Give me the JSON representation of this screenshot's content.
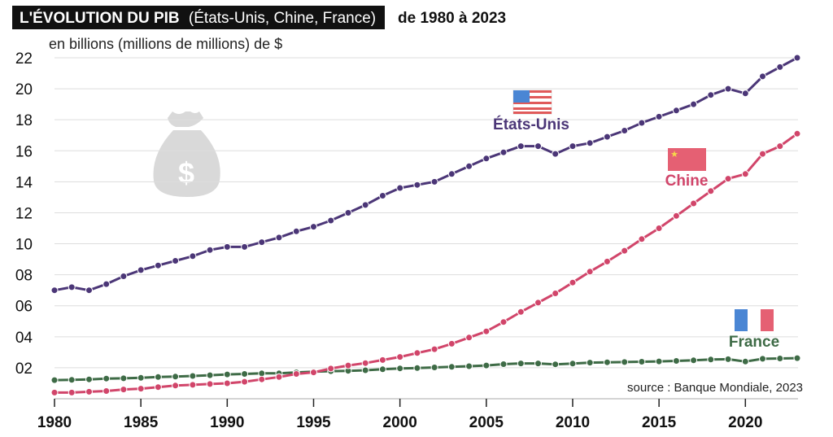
{
  "header": {
    "title_bold": "L'ÉVOLUTION DU PIB",
    "title_paren": "(États-Unis, Chine, France)",
    "title_range": "de 1980 à 2023"
  },
  "unit_label": "en billions (millions de millions) de $",
  "source": "source : Banque Mondiale, 2023",
  "colors": {
    "usa": "#4b3677",
    "china": "#d1456a",
    "france": "#3e6b46",
    "title_box": "#111111",
    "grid": "#dddddd",
    "money_bag": "#d9d9d9"
  },
  "icons": {
    "watermark": "money-bag-dollar-icon"
  },
  "chart_data": {
    "type": "line",
    "x": [
      1980,
      1981,
      1982,
      1983,
      1984,
      1985,
      1986,
      1987,
      1988,
      1989,
      1990,
      1991,
      1992,
      1993,
      1994,
      1995,
      1996,
      1997,
      1998,
      1999,
      2000,
      2001,
      2002,
      2003,
      2004,
      2005,
      2006,
      2007,
      2008,
      2009,
      2010,
      2011,
      2012,
      2013,
      2014,
      2015,
      2016,
      2017,
      2018,
      2019,
      2020,
      2021,
      2022,
      2023
    ],
    "x_ticks": [
      1980,
      1985,
      1990,
      1995,
      2000,
      2005,
      2010,
      2015,
      2020
    ],
    "x_tick_labels": [
      "1980",
      "1985",
      "1990",
      "1995",
      "2000",
      "2005",
      "2010",
      "2015",
      "2020"
    ],
    "y_ticks": [
      2,
      4,
      6,
      8,
      10,
      12,
      14,
      16,
      18,
      20,
      22
    ],
    "y_tick_labels": [
      "02",
      "04",
      "06",
      "08",
      "10",
      "12",
      "14",
      "16",
      "18",
      "20",
      "22"
    ],
    "ylim": [
      0,
      22.5
    ],
    "xlim": [
      1979.9,
      2023.6
    ],
    "grid": "horizontal",
    "series": [
      {
        "name": "États-Unis",
        "key": "usa",
        "values": [
          7.0,
          7.2,
          7.0,
          7.4,
          7.9,
          8.3,
          8.6,
          8.9,
          9.2,
          9.6,
          9.8,
          9.8,
          10.1,
          10.4,
          10.8,
          11.1,
          11.5,
          12.0,
          12.5,
          13.1,
          13.6,
          13.8,
          14.0,
          14.5,
          15.0,
          15.5,
          15.9,
          16.3,
          16.3,
          15.8,
          16.3,
          16.5,
          16.9,
          17.3,
          17.8,
          18.2,
          18.6,
          19.0,
          19.6,
          20.0,
          19.7,
          20.8,
          21.4,
          22.0
        ]
      },
      {
        "name": "Chine",
        "key": "china",
        "values": [
          0.4,
          0.4,
          0.45,
          0.5,
          0.6,
          0.65,
          0.75,
          0.85,
          0.9,
          0.95,
          1.0,
          1.1,
          1.25,
          1.4,
          1.6,
          1.7,
          1.95,
          2.15,
          2.3,
          2.5,
          2.7,
          2.95,
          3.2,
          3.55,
          3.95,
          4.35,
          4.95,
          5.6,
          6.2,
          6.8,
          7.5,
          8.2,
          8.85,
          9.55,
          10.3,
          11.0,
          11.8,
          12.6,
          13.4,
          14.2,
          14.5,
          15.8,
          16.3,
          17.1
        ]
      },
      {
        "name": "France",
        "key": "france",
        "values": [
          1.2,
          1.22,
          1.25,
          1.3,
          1.32,
          1.35,
          1.4,
          1.43,
          1.47,
          1.52,
          1.57,
          1.6,
          1.64,
          1.64,
          1.7,
          1.75,
          1.78,
          1.8,
          1.84,
          1.9,
          1.96,
          1.98,
          2.02,
          2.06,
          2.1,
          2.15,
          2.23,
          2.28,
          2.28,
          2.22,
          2.27,
          2.33,
          2.35,
          2.37,
          2.39,
          2.41,
          2.44,
          2.48,
          2.53,
          2.55,
          2.4,
          2.58,
          2.6,
          2.62
        ]
      }
    ]
  }
}
